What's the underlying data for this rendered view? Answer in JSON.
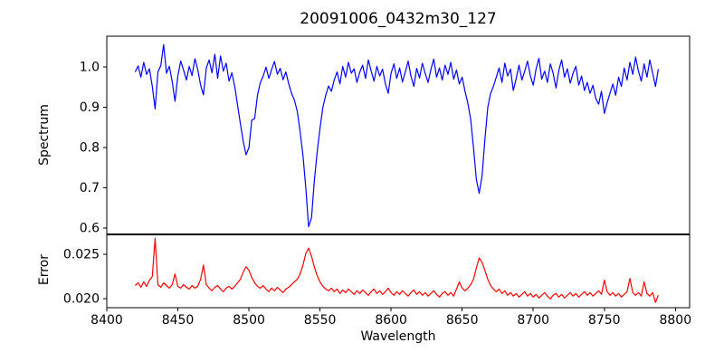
{
  "title": "20091006_0432m30_127",
  "xlabel": "Wavelength",
  "axes_color": "#000000",
  "background_color": "#ffffff",
  "xticks": [
    8400,
    8450,
    8500,
    8550,
    8600,
    8650,
    8700,
    8750,
    8800
  ],
  "xtick_labels": [
    "8400",
    "8450",
    "8500",
    "8550",
    "8600",
    "8650",
    "8700",
    "8750",
    "8800"
  ],
  "chart_data": [
    {
      "type": "line",
      "name": "Spectrum",
      "ylabel": "Spectrum",
      "line_color": "#0000ff",
      "xlim": [
        8400,
        8810
      ],
      "ylim": [
        0.585,
        1.077
      ],
      "yticks": [
        1.0,
        0.9,
        0.8,
        0.7,
        0.6
      ],
      "ytick_labels": [
        "1.0",
        "0.9",
        "0.8",
        "0.7",
        "0.6"
      ],
      "x_start": 8420,
      "x_step": 2,
      "grid": false,
      "y": [
        0.988,
        1.003,
        0.975,
        1.012,
        0.982,
        0.996,
        0.952,
        0.896,
        0.988,
        1.004,
        1.056,
        0.985,
        1.002,
        0.964,
        0.915,
        0.978,
        1.015,
        0.993,
        0.968,
        1.002,
        0.979,
        1.021,
        0.994,
        0.955,
        0.931,
        0.998,
        1.018,
        0.986,
        1.032,
        0.972,
        1.028,
        0.99,
        1.01,
        0.965,
        0.986,
        0.952,
        0.905,
        0.86,
        0.815,
        0.782,
        0.8,
        0.868,
        0.872,
        0.93,
        0.961,
        0.978,
        1.0,
        0.972,
        0.995,
        1.014,
        0.982,
        0.997,
        0.969,
        0.988,
        0.958,
        0.935,
        0.918,
        0.89,
        0.84,
        0.78,
        0.7,
        0.603,
        0.625,
        0.716,
        0.79,
        0.848,
        0.9,
        0.93,
        0.953,
        0.94,
        0.968,
        0.988,
        0.958,
        1.002,
        0.975,
        1.012,
        0.985,
        0.996,
        0.962,
        0.988,
        1.005,
        0.972,
        1.018,
        0.99,
        0.965,
        1.002,
        0.978,
        0.995,
        0.958,
        0.935,
        0.985,
        1.008,
        0.972,
        0.998,
        0.963,
        0.988,
        1.015,
        0.978,
        0.952,
        0.997,
        0.973,
        1.01,
        0.985,
        0.962,
        0.994,
        1.02,
        0.975,
        0.998,
        0.968,
        1.005,
        0.982,
        1.012,
        0.97,
        0.993,
        0.958,
        0.975,
        0.94,
        0.91,
        0.87,
        0.8,
        0.72,
        0.686,
        0.73,
        0.82,
        0.9,
        0.935,
        0.952,
        0.975,
        0.998,
        0.962,
        1.01,
        0.978,
        0.995,
        0.942,
        0.972,
        1.005,
        0.968,
        0.99,
        1.015,
        0.978,
        0.955,
        0.996,
        1.022,
        0.97,
        0.99,
        0.962,
        1.008,
        0.985,
        0.948,
        0.992,
        1.018,
        0.975,
        0.996,
        0.96,
        0.985,
        1.002,
        0.955,
        0.978,
        0.942,
        0.962,
        0.935,
        0.955,
        0.922,
        0.908,
        0.94,
        0.885,
        0.912,
        0.935,
        0.958,
        0.93,
        0.975,
        0.952,
        0.998,
        0.968,
        1.012,
        0.982,
        1.025,
        0.99,
        0.965,
        1.008,
        0.975,
        1.018,
        0.985,
        0.952,
        0.995
      ]
    },
    {
      "type": "line",
      "name": "Error",
      "ylabel": "Error",
      "line_color": "#ff0000",
      "xlim": [
        8400,
        8810
      ],
      "ylim": [
        0.019,
        0.0272
      ],
      "yticks": [
        0.025,
        0.02
      ],
      "ytick_labels": [
        "0.025",
        "0.020"
      ],
      "x_start": 8420,
      "x_step": 2,
      "grid": false,
      "y": [
        0.0215,
        0.0218,
        0.0213,
        0.0219,
        0.0214,
        0.0221,
        0.0225,
        0.0268,
        0.0216,
        0.0213,
        0.0218,
        0.0215,
        0.0212,
        0.0216,
        0.0228,
        0.0214,
        0.0212,
        0.0216,
        0.0213,
        0.0211,
        0.0215,
        0.0212,
        0.0214,
        0.0222,
        0.0238,
        0.0216,
        0.0212,
        0.0209,
        0.0213,
        0.0215,
        0.0211,
        0.0208,
        0.0212,
        0.0214,
        0.0211,
        0.0214,
        0.0218,
        0.0222,
        0.023,
        0.0236,
        0.0232,
        0.0224,
        0.0218,
        0.0214,
        0.0212,
        0.0215,
        0.0211,
        0.0208,
        0.0212,
        0.0209,
        0.0213,
        0.021,
        0.0207,
        0.0211,
        0.0213,
        0.0216,
        0.0219,
        0.0222,
        0.0228,
        0.0238,
        0.0251,
        0.0257,
        0.0248,
        0.0236,
        0.0226,
        0.0219,
        0.0214,
        0.0211,
        0.0209,
        0.0212,
        0.0208,
        0.0211,
        0.0206,
        0.021,
        0.0207,
        0.0211,
        0.0208,
        0.0205,
        0.0209,
        0.0206,
        0.021,
        0.0207,
        0.0204,
        0.0208,
        0.0211,
        0.0206,
        0.0209,
        0.0205,
        0.0208,
        0.0212,
        0.0207,
        0.0204,
        0.0208,
        0.0205,
        0.0209,
        0.0206,
        0.0203,
        0.0207,
        0.021,
        0.0205,
        0.0208,
        0.0204,
        0.0207,
        0.0203,
        0.0206,
        0.0209,
        0.0205,
        0.0202,
        0.0206,
        0.0208,
        0.0204,
        0.0207,
        0.0203,
        0.0211,
        0.0219,
        0.0212,
        0.0209,
        0.0212,
        0.0216,
        0.0222,
        0.0235,
        0.0246,
        0.0241,
        0.0232,
        0.0222,
        0.0215,
        0.0211,
        0.0208,
        0.0211,
        0.0206,
        0.0209,
        0.0204,
        0.0207,
        0.0203,
        0.0206,
        0.0202,
        0.0205,
        0.0208,
        0.0203,
        0.0206,
        0.0202,
        0.0205,
        0.0201,
        0.0204,
        0.0207,
        0.0203,
        0.02,
        0.0204,
        0.0206,
        0.0202,
        0.0205,
        0.0201,
        0.0204,
        0.0207,
        0.0203,
        0.0206,
        0.0202,
        0.0205,
        0.0208,
        0.0204,
        0.0207,
        0.0203,
        0.0206,
        0.0209,
        0.0205,
        0.0221,
        0.0208,
        0.0204,
        0.0207,
        0.0203,
        0.0206,
        0.0202,
        0.0205,
        0.0208,
        0.0223,
        0.0207,
        0.0204,
        0.0207,
        0.0203,
        0.0219,
        0.0206,
        0.0203,
        0.0207,
        0.0196,
        0.0204
      ]
    }
  ]
}
